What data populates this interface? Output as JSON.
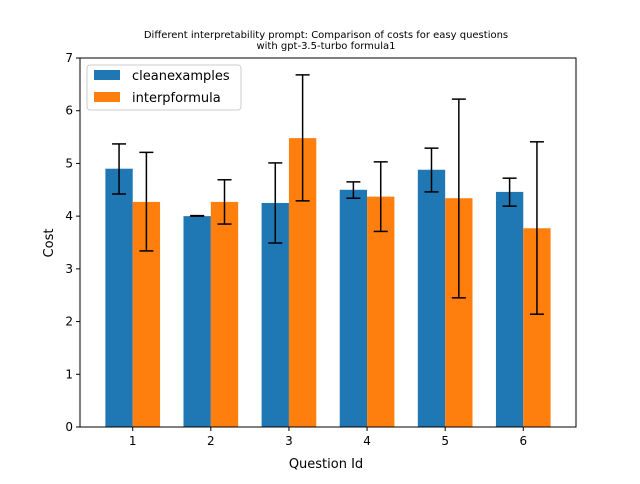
{
  "chart_data": {
    "type": "bar",
    "title_lines": [
      "Different interpretability prompt: Comparison of costs for easy questions",
      "with gpt-3.5-turbo formula1"
    ],
    "xlabel": "Question Id",
    "ylabel": "Cost",
    "categories": [
      "1",
      "2",
      "3",
      "4",
      "5",
      "6"
    ],
    "ylim": [
      0,
      7
    ],
    "yticks": [
      0,
      1,
      2,
      3,
      4,
      5,
      6,
      7
    ],
    "grid": false,
    "legend_position": "top-left",
    "series": [
      {
        "name": "cleanexamples",
        "color": "#1f77b4",
        "values": [
          4.9,
          4.0,
          4.25,
          4.5,
          4.88,
          4.46
        ],
        "error_low": [
          4.42,
          4.0,
          3.49,
          4.34,
          4.46,
          4.19
        ],
        "error_high": [
          5.37,
          4.01,
          5.01,
          4.65,
          5.29,
          4.72
        ]
      },
      {
        "name": "interpformula",
        "color": "#ff7f0e",
        "values": [
          4.27,
          4.27,
          5.48,
          4.37,
          4.34,
          3.77
        ],
        "error_low": [
          3.34,
          3.85,
          4.29,
          3.71,
          2.45,
          2.14
        ],
        "error_high": [
          5.21,
          4.69,
          6.68,
          5.03,
          6.22,
          5.41
        ]
      }
    ]
  }
}
